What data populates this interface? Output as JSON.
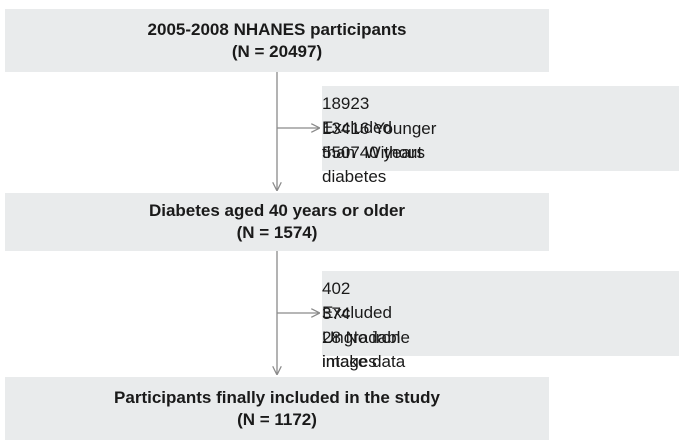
{
  "boxes": {
    "total": {
      "title": "2005-2008 NHANES participants",
      "count": "(N = 20497)"
    },
    "exclusion_1": {
      "total_number": "18923",
      "total_label": "Excluded",
      "items": [
        {
          "number": "13416",
          "label": "Younger than 40 years"
        },
        {
          "number": "5507",
          "label": "Without diabetes"
        }
      ]
    },
    "diabetes": {
      "title": "Diabetes aged 40 years or older",
      "count": "(N = 1574)"
    },
    "exclusion_2": {
      "total_number": "402",
      "total_label": "Excluded",
      "items": [
        {
          "number": "374",
          "label": "Ungradable images"
        },
        {
          "number": "28",
          "label": "No iron intake data"
        }
      ]
    },
    "final": {
      "title": "Participants finally included in the study",
      "count": "(N = 1172)"
    }
  },
  "colors": {
    "box_fill": "#e9ebec",
    "arrow": "#8a8a8a",
    "text": "#1a1a1a"
  }
}
